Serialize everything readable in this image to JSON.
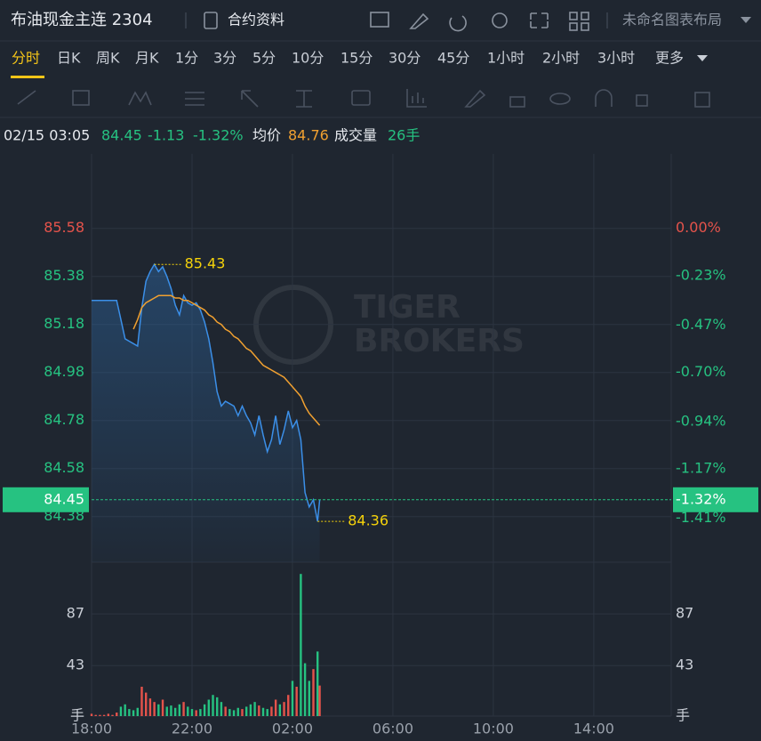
{
  "header": {
    "title": "布油现金主连 2304",
    "contract_info": "合约资料",
    "layout": "未命名图表布局"
  },
  "periods": [
    "分时",
    "日K",
    "周K",
    "月K",
    "1分",
    "3分",
    "5分",
    "10分",
    "15分",
    "30分",
    "45分",
    "1小时",
    "2小时",
    "3小时",
    "更多"
  ],
  "quote": {
    "time": "02/15 03:05",
    "price": "84.45",
    "change": "-1.13",
    "change_pct": "-1.32%",
    "avg_label": "均价",
    "avg": "84.76",
    "volume_label": "成交量",
    "volume": "26手"
  },
  "watermark": [
    "TIGER",
    "BROKERS"
  ],
  "chart_data": [
    {
      "type": "line",
      "x": [
        "18:00",
        "18:10",
        "18:20",
        "18:30",
        "18:40",
        "18:50",
        "19:00",
        "19:10",
        "19:20",
        "19:30",
        "19:40",
        "19:50",
        "20:00",
        "20:10",
        "20:20",
        "20:30",
        "20:40",
        "20:50",
        "21:00",
        "21:10",
        "21:20",
        "21:30",
        "21:40",
        "21:50",
        "22:00",
        "22:10",
        "22:20",
        "22:30",
        "22:40",
        "22:50",
        "23:00",
        "23:10",
        "23:20",
        "23:30",
        "23:40",
        "23:50",
        "00:00",
        "00:10",
        "00:20",
        "00:30",
        "00:40",
        "00:50",
        "01:00",
        "01:10",
        "01:20",
        "01:30",
        "01:40",
        "01:50",
        "02:00",
        "02:10",
        "02:20",
        "02:30",
        "02:40",
        "02:50",
        "03:00",
        "03:05"
      ],
      "series": [
        {
          "color": "#3b8fe8",
          "values": [
            85.28,
            85.28,
            85.28,
            85.28,
            85.28,
            85.28,
            85.28,
            85.2,
            85.12,
            85.11,
            85.1,
            85.09,
            85.25,
            85.36,
            85.4,
            85.43,
            85.4,
            85.42,
            85.38,
            85.33,
            85.26,
            85.22,
            85.3,
            85.27,
            85.26,
            85.27,
            85.24,
            85.19,
            85.12,
            85.02,
            84.9,
            84.84,
            84.86,
            84.85,
            84.84,
            84.8,
            84.84,
            84.8,
            84.77,
            84.72,
            84.8,
            84.72,
            84.65,
            84.7,
            84.8,
            84.68,
            84.74,
            84.82,
            84.75,
            84.78,
            84.7,
            84.48,
            84.42,
            84.45,
            84.36,
            84.45
          ]
        },
        {
          "color": "#f0a030",
          "values": [
            null,
            null,
            null,
            null,
            null,
            null,
            null,
            null,
            null,
            null,
            85.16,
            85.2,
            85.25,
            85.27,
            85.28,
            85.29,
            85.3,
            85.3,
            85.3,
            85.3,
            85.29,
            85.29,
            85.28,
            85.28,
            85.27,
            85.26,
            85.25,
            85.24,
            85.22,
            85.21,
            85.19,
            85.18,
            85.16,
            85.15,
            85.13,
            85.12,
            85.1,
            85.08,
            85.07,
            85.05,
            85.03,
            85.01,
            85.0,
            84.99,
            84.98,
            84.97,
            84.96,
            84.94,
            84.92,
            84.9,
            84.88,
            84.84,
            84.81,
            84.79,
            84.77,
            84.76
          ]
        }
      ],
      "xlim": [
        "18:00",
        "17:05"
      ],
      "xticks": [
        "18:00",
        "22:00",
        "02:00",
        "06:00",
        "10:00",
        "14:00"
      ],
      "ylim": [
        84.19,
        85.89
      ],
      "yticks": [
        85.58,
        85.38,
        85.18,
        84.98,
        84.78,
        84.58,
        84.38
      ],
      "y2lim": [
        -1.624,
        0.362
      ],
      "y2ticks": [
        {
          "value": 0,
          "label": "0.00%"
        },
        {
          "value": -0.23,
          "label": "-0.23%"
        },
        {
          "value": -0.47,
          "label": "-0.47%"
        },
        {
          "value": -0.7,
          "label": "-0.70%"
        },
        {
          "value": -0.94,
          "label": "-0.94%"
        },
        {
          "value": -1.17,
          "label": "-1.17%"
        },
        {
          "value": -1.41,
          "label": "-1.41%"
        }
      ],
      "max": {
        "x": "20:30",
        "value": 85.43
      },
      "min": {
        "x": "03:00",
        "value": 84.36
      },
      "last": {
        "value": 84.45,
        "pct": {
          "value": -1.32,
          "label": "-1.32%"
        }
      },
      "up_color": "#e5534b",
      "down_color": "#26c281",
      "grid": true
    },
    {
      "type": "bar",
      "values": [
        2,
        1,
        1,
        1,
        2,
        1,
        3,
        8,
        10,
        6,
        5,
        7,
        25,
        20,
        15,
        12,
        10,
        14,
        8,
        9,
        7,
        10,
        12,
        8,
        6,
        5,
        6,
        10,
        14,
        18,
        16,
        12,
        8,
        6,
        5,
        7,
        6,
        8,
        10,
        12,
        9,
        7,
        6,
        8,
        14,
        10,
        12,
        18,
        30,
        25,
        121,
        45,
        30,
        40,
        55,
        26
      ],
      "ylim": [
        0,
        131
      ],
      "yticks": [
        {
          "value": 0,
          "label": "手"
        },
        43,
        87
      ],
      "up_color": "#e5534b",
      "down_color": "#26c281",
      "grid": true
    }
  ]
}
